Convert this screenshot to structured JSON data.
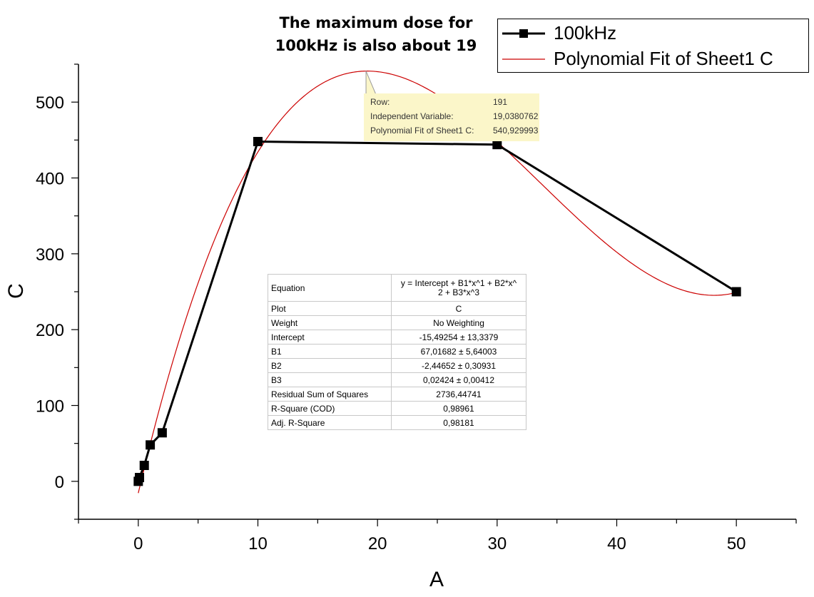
{
  "chart_data": {
    "type": "line",
    "xlabel": "A",
    "ylabel": "C",
    "xlim": [
      -5,
      55
    ],
    "ylim": [
      -50,
      550
    ],
    "x_ticks": [
      0,
      10,
      20,
      30,
      40,
      50
    ],
    "y_ticks": [
      0,
      100,
      200,
      300,
      400,
      500
    ],
    "grid": false,
    "legend_position": "top-right",
    "series": [
      {
        "name": "100kHz",
        "color": "#000000",
        "marker": "square",
        "x": [
          0,
          0.1,
          0.5,
          1,
          2,
          10,
          30,
          50
        ],
        "y": [
          0,
          5,
          21,
          48,
          64,
          448,
          444,
          250
        ]
      },
      {
        "name": "Polynomial Fit of Sheet1 C",
        "color": "#cc0000",
        "marker": "none",
        "fit": {
          "intercept": -15.49254,
          "b1": 67.01682,
          "b2": -2.44652,
          "b3": 0.02424
        },
        "x_range": [
          0,
          50
        ]
      }
    ]
  },
  "annotation": {
    "lines": [
      "The maximum dose for",
      "100kHz is also about 19"
    ]
  },
  "tooltip": {
    "anchor": {
      "x": 19.0380762,
      "y": 540.929993
    },
    "rows": [
      {
        "label": "Row:",
        "value": "191"
      },
      {
        "label": "Independent Variable:",
        "value": "19,0380762"
      },
      {
        "label": "Polynomial Fit of Sheet1 C:",
        "value": "540,929993"
      }
    ]
  },
  "fit_table": {
    "equation_label": "Equation",
    "equation_lines": [
      "y = Intercept + B1*x^1 + B2*x^",
      "2 + B3*x^3"
    ],
    "rows": [
      {
        "label": "Plot",
        "value": "C"
      },
      {
        "label": "Weight",
        "value": "No Weighting"
      },
      {
        "label": "Intercept",
        "value": "-15,49254 ± 13,3379"
      },
      {
        "label": "B1",
        "value": "67,01682 ± 5,64003"
      },
      {
        "label": "B2",
        "value": "-2,44652 ± 0,30931"
      },
      {
        "label": "B3",
        "value": "0,02424 ± 0,00412"
      },
      {
        "label": "Residual Sum of Squares",
        "value": "2736,44741"
      },
      {
        "label": "R-Square (COD)",
        "value": "0,98961"
      },
      {
        "label": "Adj. R-Square",
        "value": "0,98181"
      }
    ]
  }
}
